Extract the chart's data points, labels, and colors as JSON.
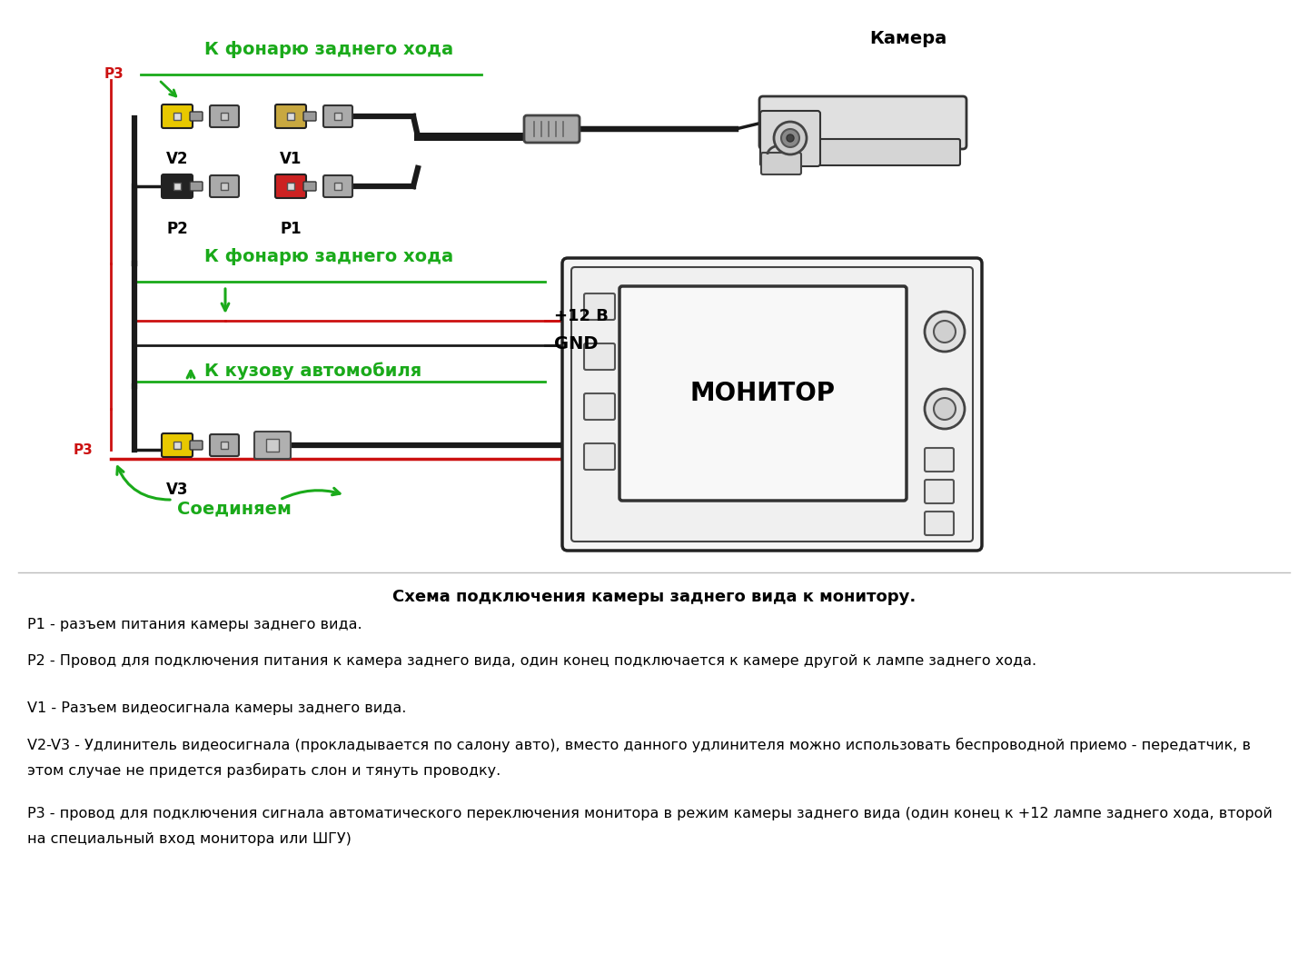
{
  "bg_color": "#ffffff",
  "title_section": "Схема подключения камеры заднего вида к монитору.",
  "label_camera": "Камера",
  "label_monitor": "МОНИТОР",
  "label_v1": "V1",
  "label_v2": "V2",
  "label_v3": "V3",
  "label_p1": "P1",
  "label_p2": "P2",
  "label_p3": "P3",
  "label_back_light_top": "К фонарю заднего хода",
  "label_back_light_mid": "К фонарю заднего хода",
  "label_body": "К кузову автомобиля",
  "label_connect": "Соединяем",
  "label_12v": "+12 В",
  "label_gnd": "GND",
  "green_color": "#1aaa1a",
  "red_color": "#cc1111",
  "black_color": "#1a1a1a",
  "yellow_color": "#e8c800",
  "gray_color": "#888888",
  "desc_lines": [
    "Р1 - разъем питания камеры заднего вида.",
    "Р2 - Провод для подключения питания к камера заднего вида, один конец подключается к камере другой к лампе заднего хода.",
    "V1 - Разъем видеосигнала камеры заднего вида.",
    "V2-V3 - Удлинитель видеосигнала (прокладывается по салону авто), вместо данного удлинителя можно использовать беспроводной приемо - передатчик, в этом случае не придется разбирать слон и тянуть проводку.",
    "Р3 - провод для подключения сигнала автоматического переключения монитора в режим камеры заднего вида (один конец к +12 лампе заднего хода, второй на специальный вход монитора или ШГУ)"
  ],
  "desc_lines2": [
    "",
    "",
    "",
    "этом случае не придется разбирать слон и тянуть проводку.",
    "на специальный вход монитора или ШГУ)"
  ]
}
